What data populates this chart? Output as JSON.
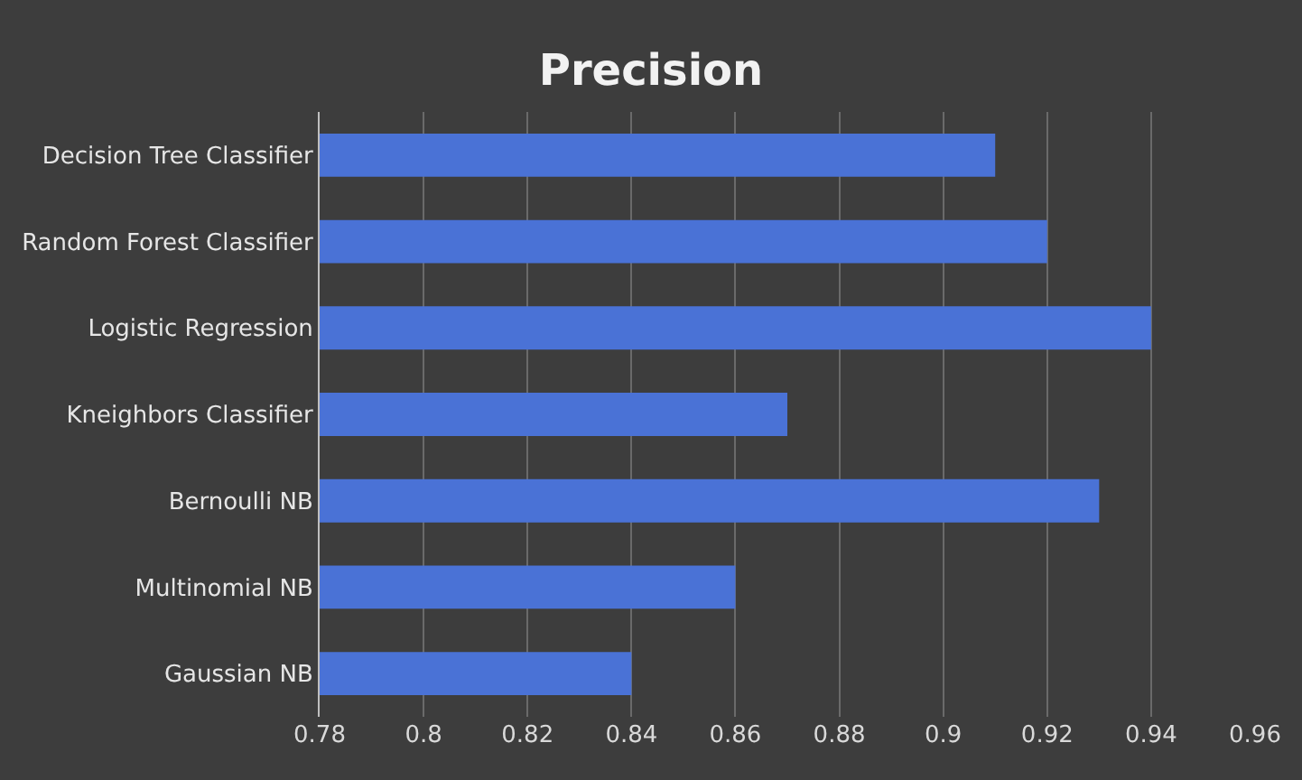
{
  "chart_data": {
    "type": "bar",
    "orientation": "horizontal",
    "title": "Precision",
    "categories": [
      "Decision Tree Classifier",
      "Random Forest Classifier",
      "Logistic Regression",
      "Kneighbors Classifier",
      "Bernoulli NB",
      "Multinomial NB",
      "Gaussian NB"
    ],
    "values": [
      0.91,
      0.92,
      0.94,
      0.87,
      0.93,
      0.86,
      0.84
    ],
    "color": "#4a72d6",
    "xlim": [
      0.78,
      0.96
    ],
    "xticks": [
      0.78,
      0.8,
      0.82,
      0.84,
      0.86,
      0.88,
      0.9,
      0.92,
      0.94,
      0.96
    ],
    "grid": "x",
    "legend": false
  }
}
